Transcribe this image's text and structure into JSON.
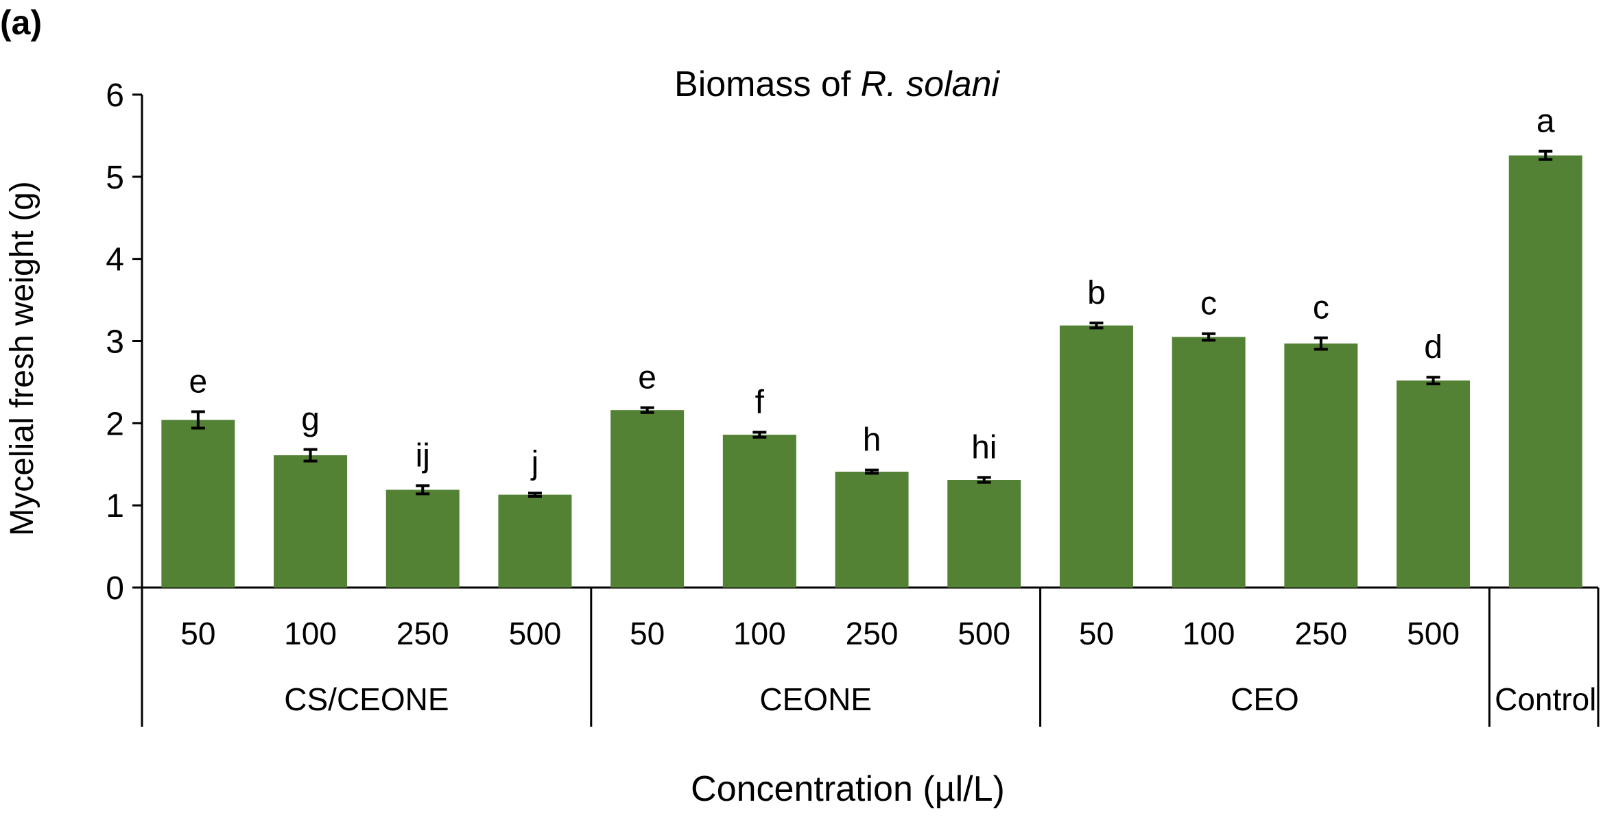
{
  "panel_label": "(a)",
  "chart_data": {
    "type": "bar",
    "title": {
      "prefix": "Biomass of ",
      "italic": "R. solani"
    },
    "xlabel": "Concentration (µl/L)",
    "ylabel": "Mycelial fresh weight (g)",
    "ylim": [
      0,
      6
    ],
    "yticks": [
      0,
      1,
      2,
      3,
      4,
      5,
      6
    ],
    "grid": false,
    "color": "#548235",
    "error_color": "#000000",
    "groups": [
      {
        "name": "CS/CEONE",
        "bars": [
          {
            "category": "50",
            "value": 2.04,
            "error": 0.1,
            "letter": "e"
          },
          {
            "category": "100",
            "value": 1.61,
            "error": 0.07,
            "letter": "g"
          },
          {
            "category": "250",
            "value": 1.19,
            "error": 0.05,
            "letter": "ij"
          },
          {
            "category": "500",
            "value": 1.13,
            "error": 0.02,
            "letter": "j"
          }
        ]
      },
      {
        "name": "CEONE",
        "bars": [
          {
            "category": "50",
            "value": 2.16,
            "error": 0.03,
            "letter": "e"
          },
          {
            "category": "100",
            "value": 1.86,
            "error": 0.03,
            "letter": "f"
          },
          {
            "category": "250",
            "value": 1.41,
            "error": 0.02,
            "letter": "h"
          },
          {
            "category": "500",
            "value": 1.31,
            "error": 0.03,
            "letter": "hi"
          }
        ]
      },
      {
        "name": "CEO",
        "bars": [
          {
            "category": "50",
            "value": 3.19,
            "error": 0.03,
            "letter": "b"
          },
          {
            "category": "100",
            "value": 3.05,
            "error": 0.04,
            "letter": "c"
          },
          {
            "category": "250",
            "value": 2.97,
            "error": 0.07,
            "letter": "c"
          },
          {
            "category": "500",
            "value": 2.52,
            "error": 0.04,
            "letter": "d"
          }
        ]
      },
      {
        "name": "Control",
        "bars": [
          {
            "category": "",
            "value": 5.26,
            "error": 0.05,
            "letter": "a"
          }
        ]
      }
    ]
  }
}
